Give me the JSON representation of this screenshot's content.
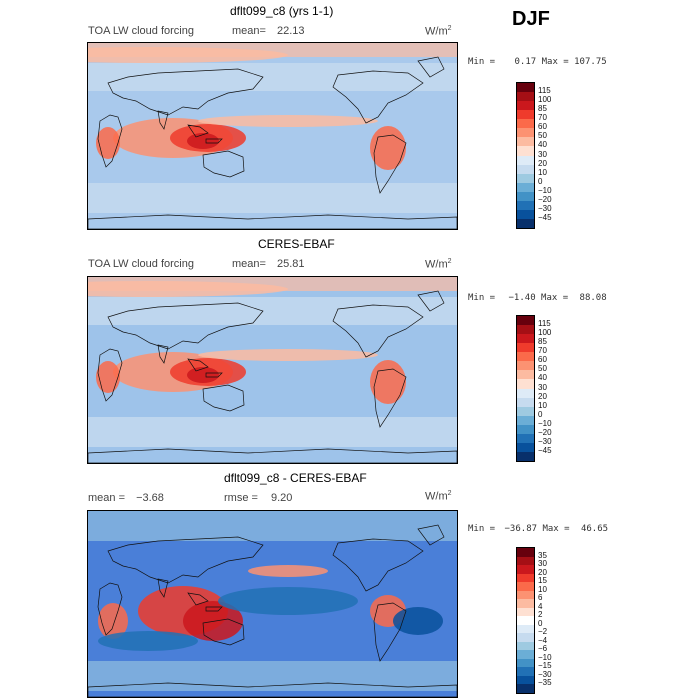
{
  "season": "DJF",
  "panels": [
    {
      "title": "dflt099_c8 (yrs 1-1)",
      "left_label": "TOA LW cloud forcing",
      "stat_label": "mean=",
      "stat_value": "22.13",
      "stat2_label": "",
      "stat2_value": "",
      "units": "W/m",
      "units_exp": "2",
      "min_label": "Min =",
      "min_value": "0.17",
      "max_label": "Max =",
      "max_value": "107.75",
      "colorbar_levels": [
        "115",
        "100",
        "85",
        "70",
        "60",
        "50",
        "40",
        "30",
        "20",
        "10",
        "0",
        "−10",
        "−20",
        "−30",
        "−45"
      ],
      "colorbar_colors": [
        "#67000d",
        "#a50f15",
        "#cb181d",
        "#ef3b2c",
        "#fb6a4a",
        "#fc9272",
        "#fcbba1",
        "#fee0d2",
        "#deebf7",
        "#c6dbef",
        "#9ecae1",
        "#6baed6",
        "#4292c6",
        "#2171b5",
        "#08519c",
        "#08306b"
      ],
      "map_style": "model"
    },
    {
      "title": "CERES-EBAF",
      "left_label": "TOA LW cloud forcing",
      "stat_label": "mean=",
      "stat_value": "25.81",
      "stat2_label": "",
      "stat2_value": "",
      "units": "W/m",
      "units_exp": "2",
      "min_label": "Min =",
      "min_value": "−1.40",
      "max_label": "Max =",
      "max_value": "88.08",
      "colorbar_levels": [
        "115",
        "100",
        "85",
        "70",
        "60",
        "50",
        "40",
        "30",
        "20",
        "10",
        "0",
        "−10",
        "−20",
        "−30",
        "−45"
      ],
      "colorbar_colors": [
        "#67000d",
        "#a50f15",
        "#cb181d",
        "#ef3b2c",
        "#fb6a4a",
        "#fc9272",
        "#fcbba1",
        "#fee0d2",
        "#deebf7",
        "#c6dbef",
        "#9ecae1",
        "#6baed6",
        "#4292c6",
        "#2171b5",
        "#08519c",
        "#08306b"
      ],
      "map_style": "obs"
    },
    {
      "title": "dflt099_c8 - CERES-EBAF",
      "left_label": "",
      "stat_label": "mean =",
      "stat_value": "−3.68",
      "stat2_label": "rmse =",
      "stat2_value": "9.20",
      "units": "W/m",
      "units_exp": "2",
      "min_label": "Min =",
      "min_value": "−36.87",
      "max_label": "Max =",
      "max_value": "46.65",
      "colorbar_levels": [
        "35",
        "30",
        "20",
        "15",
        "10",
        "6",
        "4",
        "2",
        "0",
        "−2",
        "−4",
        "−6",
        "−10",
        "−15",
        "−30",
        "−35"
      ],
      "colorbar_colors": [
        "#67000d",
        "#a50f15",
        "#cb181d",
        "#ef3b2c",
        "#fb6a4a",
        "#fc9272",
        "#fcbba1",
        "#fee0d2",
        "#ffffff",
        "#deebf7",
        "#c6dbef",
        "#9ecae1",
        "#6baed6",
        "#4292c6",
        "#2171b5",
        "#08519c",
        "#08306b"
      ],
      "map_style": "diff"
    }
  ]
}
